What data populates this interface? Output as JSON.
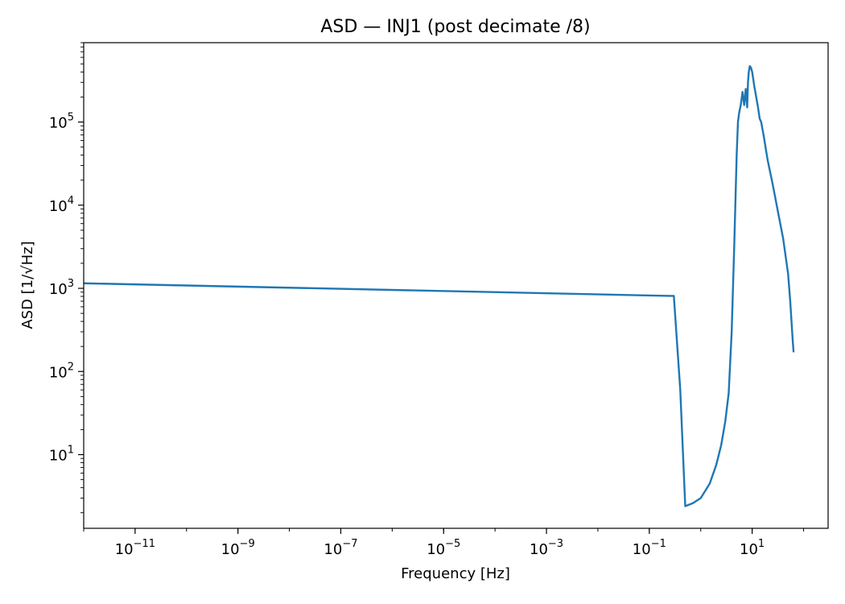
{
  "chart_data": {
    "type": "line",
    "title": "ASD — INJ1 (post decimate /8)",
    "xlabel": "Frequency [Hz]",
    "ylabel": "ASD [1/√Hz]",
    "xscale": "log",
    "yscale": "log",
    "xlim": [
      1e-12,
      300
    ],
    "ylim": [
      1.3,
      900000
    ],
    "grid": false,
    "x_ticks": [
      {
        "base": "10",
        "exp": "−11",
        "value": 1e-11
      },
      {
        "base": "10",
        "exp": "−9",
        "value": 1e-09
      },
      {
        "base": "10",
        "exp": "−7",
        "value": 1e-07
      },
      {
        "base": "10",
        "exp": "−5",
        "value": 1e-05
      },
      {
        "base": "10",
        "exp": "−3",
        "value": 0.001
      },
      {
        "base": "10",
        "exp": "−1",
        "value": 0.1
      },
      {
        "base": "10",
        "exp": "1",
        "value": 10
      }
    ],
    "y_ticks": [
      {
        "base": "10",
        "exp": "1",
        "value": 10
      },
      {
        "base": "10",
        "exp": "2",
        "value": 100
      },
      {
        "base": "10",
        "exp": "3",
        "value": 1000
      },
      {
        "base": "10",
        "exp": "4",
        "value": 10000
      },
      {
        "base": "10",
        "exp": "5",
        "value": 100000
      }
    ],
    "line_color": "#1f77b4",
    "series": [
      {
        "x": [
          1e-12,
          0.25,
          0.3,
          0.4,
          0.5,
          0.7,
          1.0,
          1.5,
          2.0,
          2.5,
          3.0,
          3.5,
          4.0,
          4.5,
          5.0,
          5.3,
          5.6,
          6.0,
          6.5,
          7.0,
          7.5,
          8.0,
          8.3,
          8.6,
          9.0,
          9.5,
          10.0,
          10.5,
          11.0,
          12.0,
          13.0,
          14.0,
          15.0,
          16.0,
          17.0,
          18.0,
          20.0,
          25.0,
          30.0,
          40.0,
          50.0,
          55.0,
          60.0,
          62.0,
          64.0
        ],
        "y": [
          1150,
          810,
          810,
          60,
          2.4,
          2.6,
          3.0,
          4.5,
          7.5,
          13,
          25,
          55,
          300,
          3500,
          40000,
          100000,
          130000,
          160000,
          230000,
          160000,
          250000,
          150000,
          300000,
          400000,
          470000,
          450000,
          400000,
          330000,
          270000,
          200000,
          150000,
          110000,
          100000,
          80000,
          65000,
          52000,
          35000,
          18000,
          10000,
          4000,
          1500,
          700,
          300,
          220,
          170
        ]
      }
    ]
  }
}
